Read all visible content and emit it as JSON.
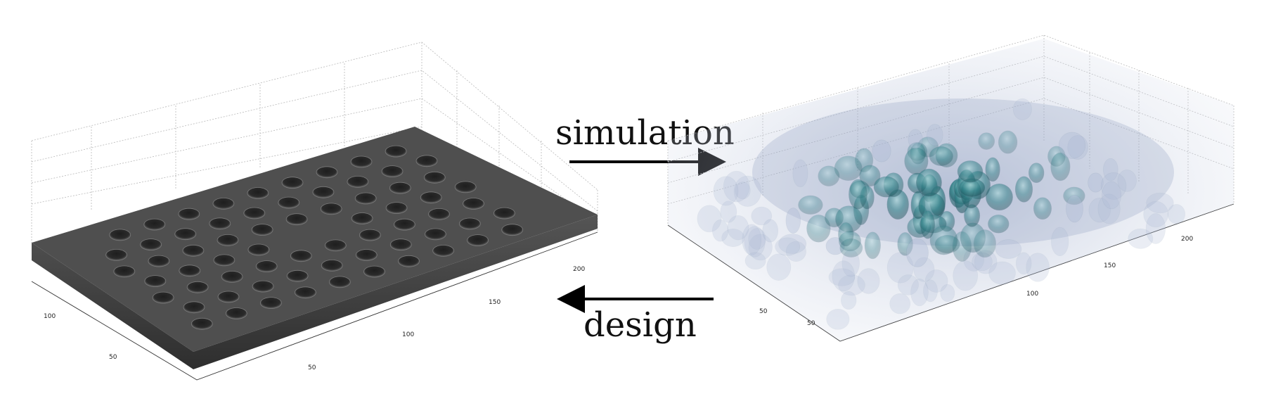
{
  "arrows": {
    "forward_label": "simulation",
    "backward_label": "design"
  },
  "left_panel": {
    "x_ticks": [
      "100",
      "150",
      "200"
    ],
    "y_ticks": [
      "50",
      "100"
    ],
    "extra_tick": "50",
    "plate_color": "#4f4f4f",
    "hole_color": "#2e2e2e"
  },
  "right_panel": {
    "x_ticks": [
      "50",
      "100",
      "150",
      "200"
    ],
    "y_ticks": [
      "50"
    ],
    "blob_color": "#2f7f86",
    "haze_color": "#c9d0e2"
  }
}
